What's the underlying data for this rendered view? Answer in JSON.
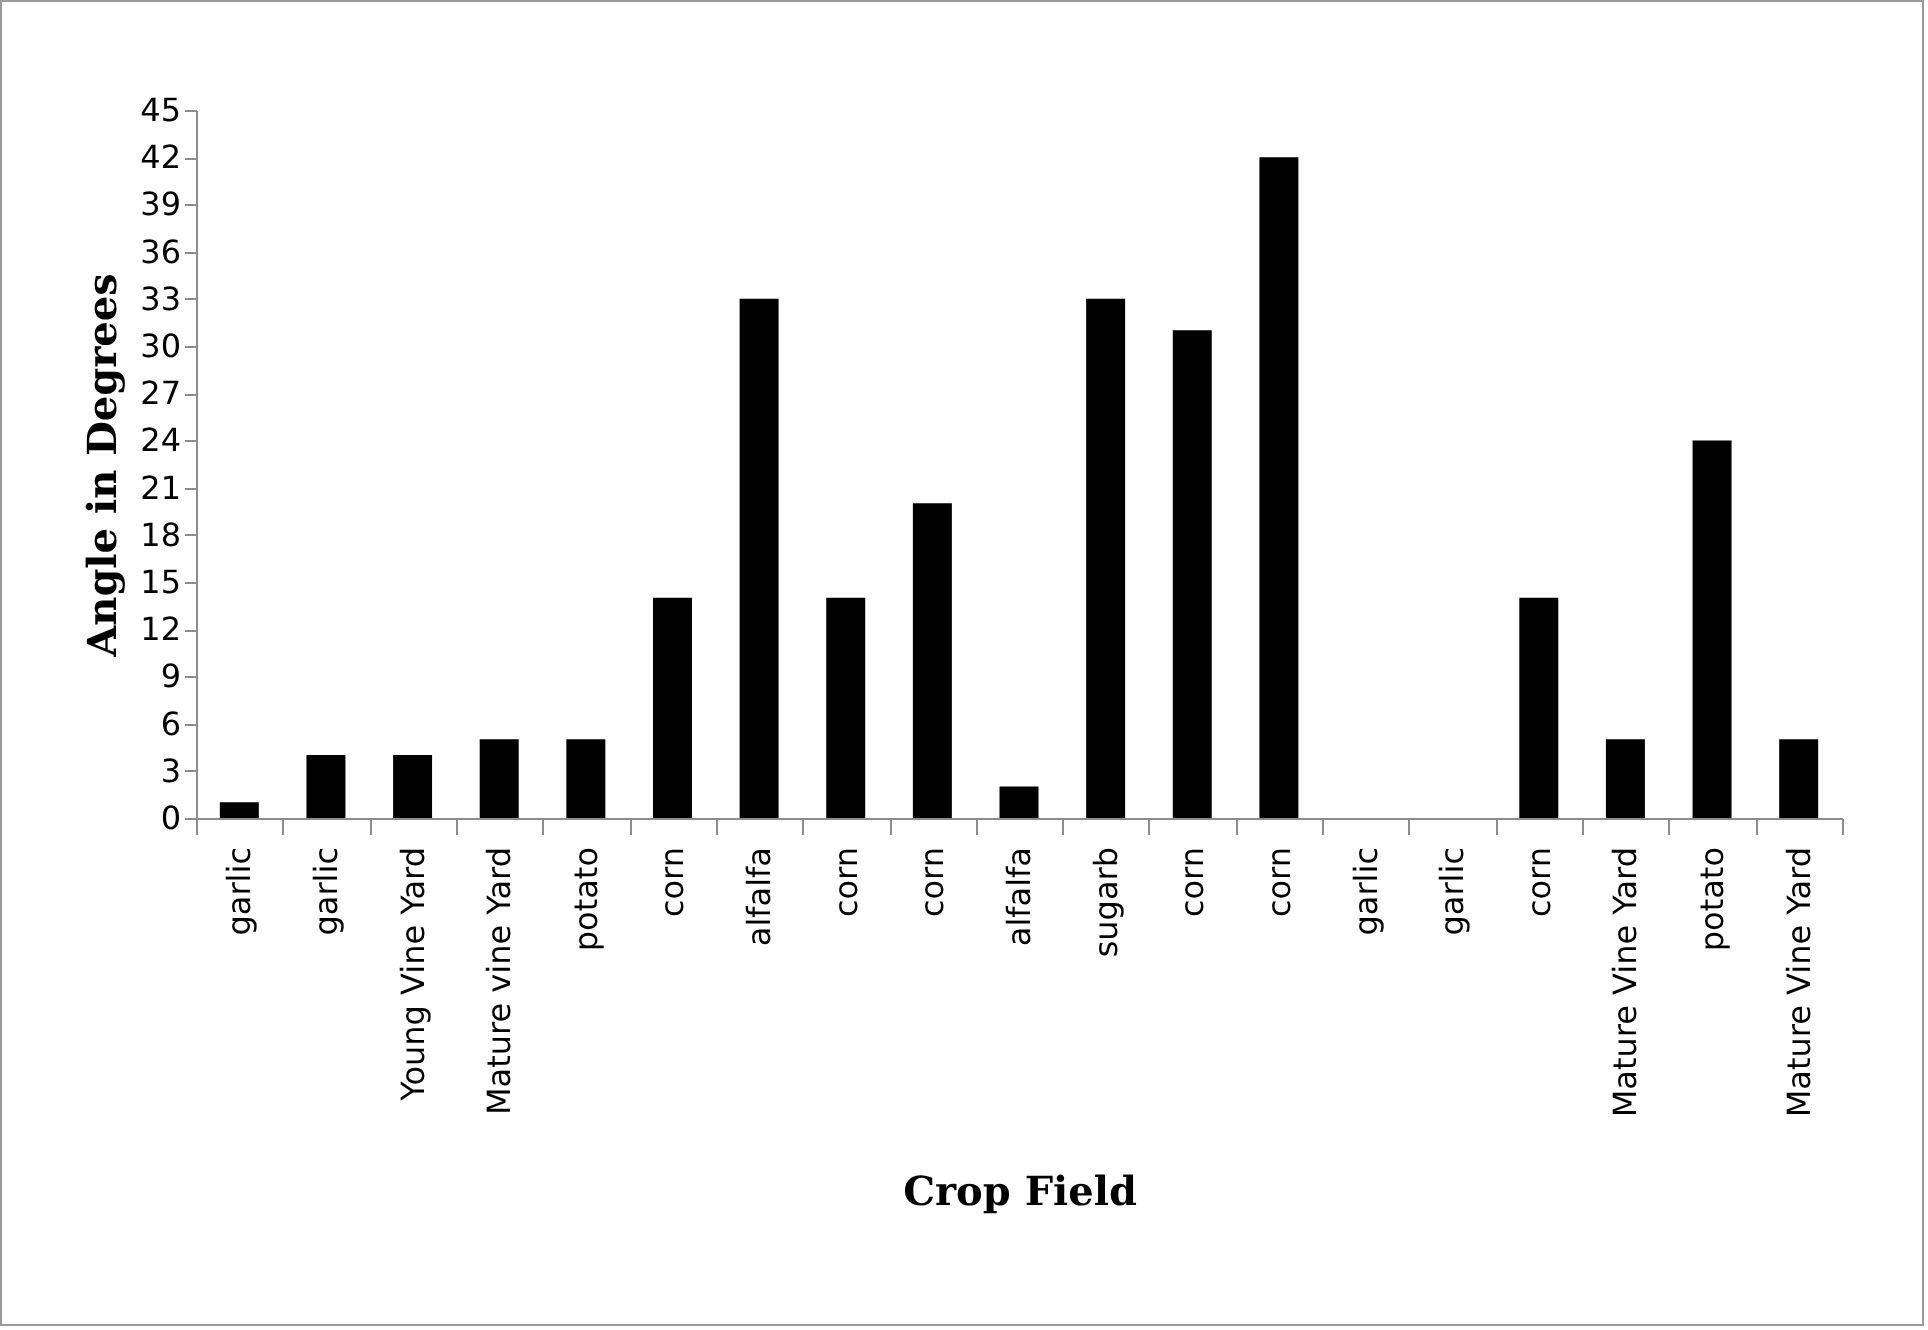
{
  "chart_data": {
    "type": "bar",
    "xlabel": "Crop Field",
    "ylabel": "Angle in Degrees",
    "categories": [
      "garlic",
      "garlic",
      "Young Vine Yard",
      "Mature vine Yard",
      "potato",
      "corn",
      "alfalfa",
      "corn",
      "corn",
      "alfalfa",
      "sugarb",
      "corn",
      "corn",
      "garlic",
      "garlic",
      "corn",
      "Mature Vine Yard",
      "potato",
      "Mature Vine Yard"
    ],
    "values": [
      1,
      4,
      4,
      5,
      5,
      14,
      33,
      14,
      20,
      2,
      33,
      31,
      42,
      0,
      0,
      14,
      5,
      24,
      5
    ],
    "color": "#000000",
    "ylim": [
      0,
      45
    ],
    "yticks": [
      0,
      3,
      6,
      9,
      12,
      15,
      18,
      21,
      24,
      27,
      30,
      33,
      36,
      39,
      42,
      45
    ],
    "grid": false
  }
}
